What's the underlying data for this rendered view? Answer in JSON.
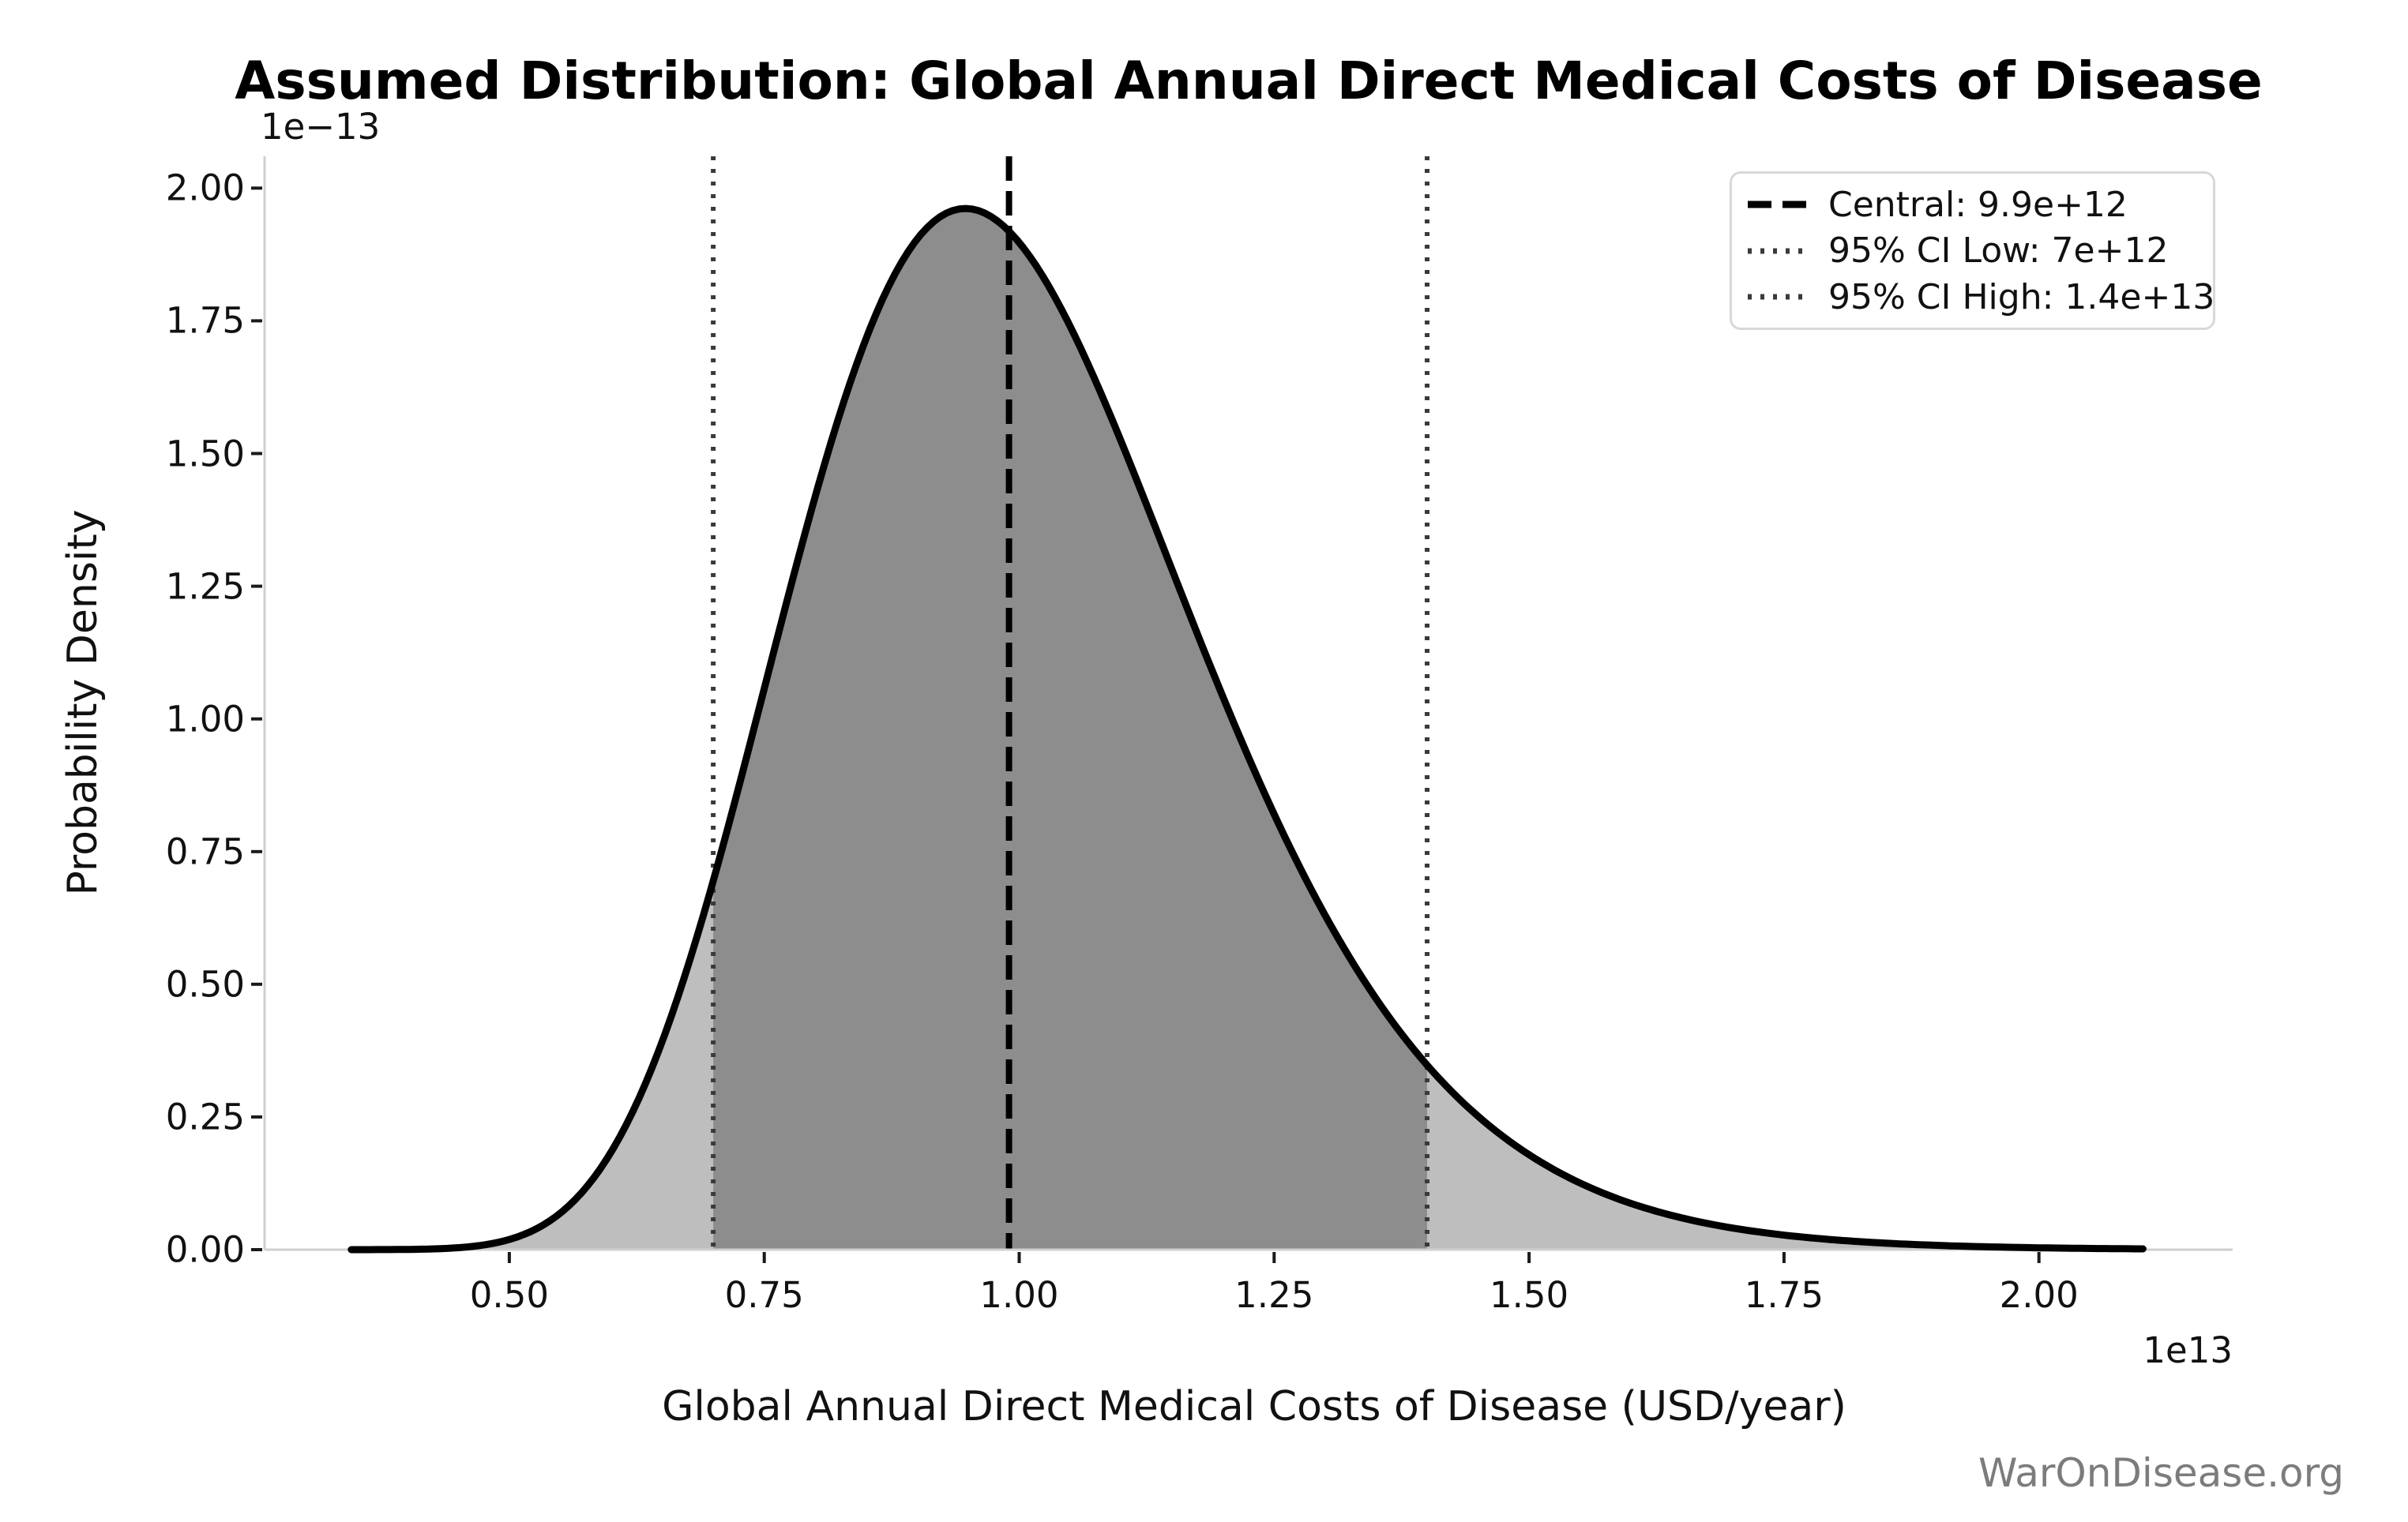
{
  "title": "Assumed Distribution: Global Annual Direct Medical Costs of Disease",
  "watermark": "WarOnDisease.org",
  "chart_data": {
    "type": "area",
    "title": "Assumed Distribution: Global Annual Direct Medical Costs of Disease",
    "xlabel": "Global Annual Direct Medical Costs of Disease (USD/year)",
    "ylabel": "Probability Density",
    "x_offset_label": "1e13",
    "y_offset_label": "1e−13",
    "x_units": "1e13 USD/year",
    "y_units": "1e-13 probability density",
    "xlim": [
      0.26,
      2.19
    ],
    "ylim": [
      0,
      2.06
    ],
    "grid": false,
    "x_tick_values": [
      0.5,
      0.75,
      1.0,
      1.25,
      1.5,
      1.75,
      2.0
    ],
    "x_tick_labels": [
      "0.50",
      "0.75",
      "1.00",
      "1.25",
      "1.50",
      "1.75",
      "2.00"
    ],
    "y_tick_values": [
      0.0,
      0.25,
      0.5,
      0.75,
      1.0,
      1.25,
      1.5,
      1.75,
      2.0
    ],
    "y_tick_labels": [
      "0.00",
      "0.25",
      "0.50",
      "0.75",
      "1.00",
      "1.25",
      "1.50",
      "1.75",
      "2.00"
    ],
    "curve": {
      "distribution": "lognormal",
      "median": 0.99,
      "sigma_log": 0.21,
      "x_min": 0.345,
      "x_max": 2.102,
      "mode": 0.947,
      "peak_density": 1.96,
      "points_x": [
        0.345,
        0.4,
        0.45,
        0.5,
        0.55,
        0.6,
        0.65,
        0.7,
        0.75,
        0.8,
        0.85,
        0.9,
        0.95,
        0.99,
        1.05,
        1.1,
        1.2,
        1.3,
        1.4,
        1.5,
        1.6,
        1.7,
        1.8,
        1.9,
        2.0,
        2.1
      ],
      "points_y": [
        0.0,
        0.0,
        0.004,
        0.019,
        0.069,
        0.184,
        0.393,
        0.695,
        1.057,
        1.419,
        1.717,
        1.904,
        1.961,
        1.919,
        1.74,
        1.523,
        1.04,
        0.63,
        0.348,
        0.179,
        0.087,
        0.041,
        0.018,
        0.008,
        0.004,
        0.002
      ]
    },
    "vlines": {
      "central": {
        "value": 0.99,
        "label_value": "9.9e+12",
        "style": "dashed",
        "color": "#000000"
      },
      "ci_low": {
        "value": 0.7,
        "label_value": "7e+12",
        "style": "dotted",
        "color": "#3a3a3a"
      },
      "ci_high": {
        "value": 1.4,
        "label_value": "1.4e+13",
        "style": "dotted",
        "color": "#3a3a3a"
      }
    },
    "legend": {
      "position": "upper right",
      "entries": [
        {
          "label": "Central: 9.9e+12",
          "style": "dashed",
          "color": "#000000"
        },
        {
          "label": "95% CI Low: 7e+12",
          "style": "dotted",
          "color": "#3a3a3a"
        },
        {
          "label": "95% CI High: 1.4e+13",
          "style": "dotted",
          "color": "#3a3a3a"
        }
      ]
    },
    "colors": {
      "fill_light": "#bebebe",
      "fill_dark": "#8d8d8d",
      "curve_line": "#000000",
      "spine": "#cfcfcf",
      "tick_mark": "#1a1a1a",
      "text": "#111111",
      "watermark": "#7c7c7c",
      "background": "#ffffff",
      "legend_border": "#d8d8d8"
    }
  }
}
